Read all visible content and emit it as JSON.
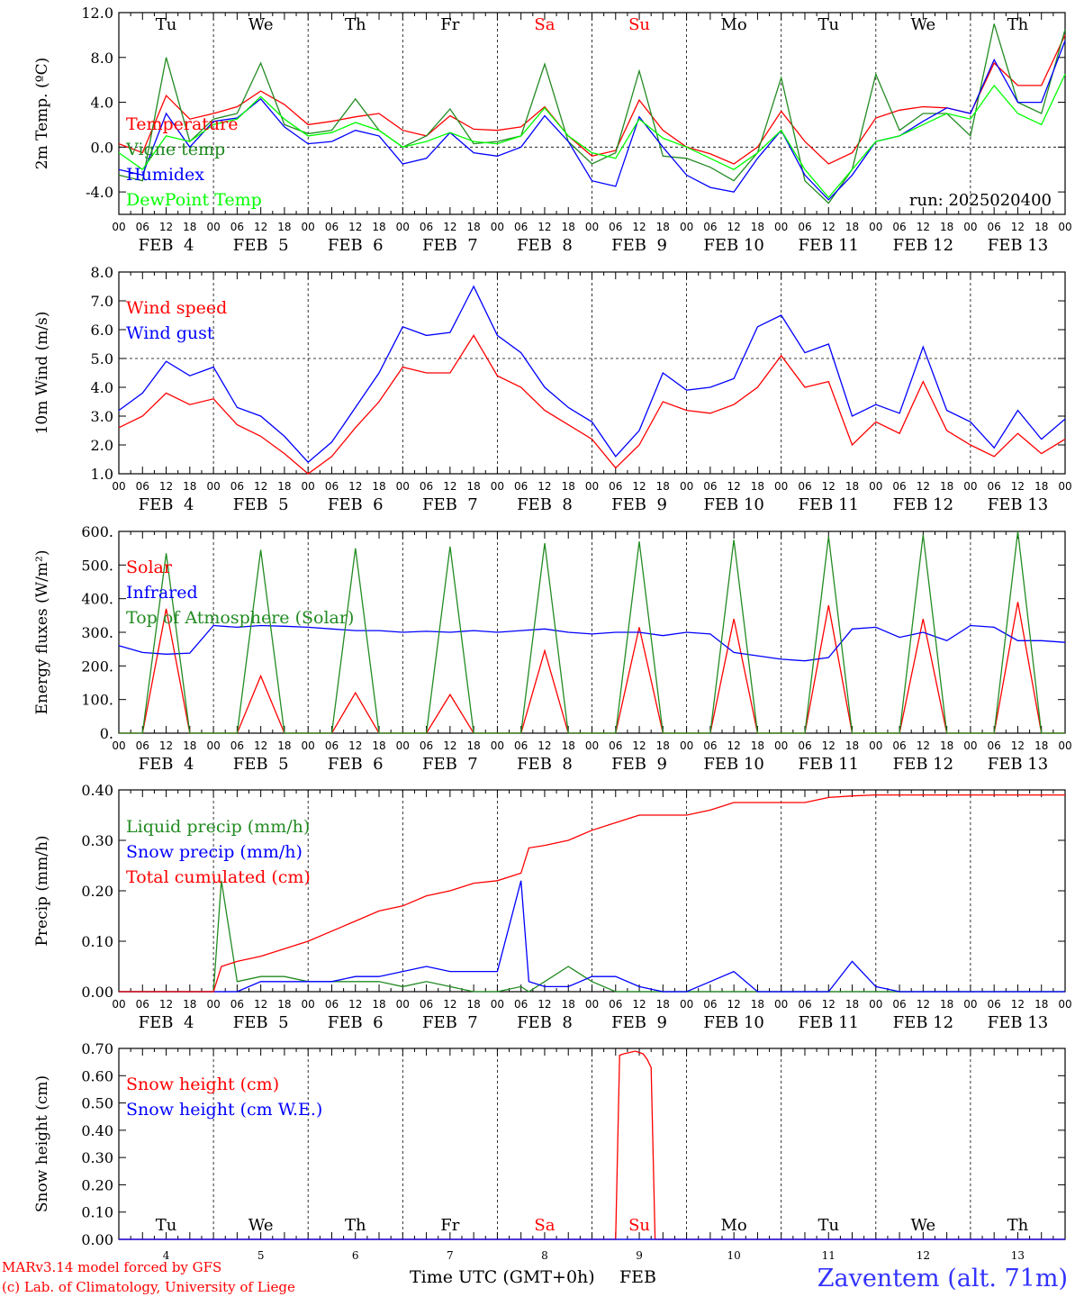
{
  "footer": {
    "model_line": "MARv3.14 model forced by GFS",
    "credit_line": "(c) Lab. of Climatology, University of Liege",
    "time_axis_label": "Time UTC (GMT+0h)",
    "month_label": "FEB",
    "station": "Zaventem (alt. 71m)"
  },
  "hour_labels": [
    "00",
    "06",
    "12",
    "18"
  ],
  "date_labels": [
    "FEB  4",
    "FEB  5",
    "FEB  6",
    "FEB  7",
    "FEB  8",
    "FEB  9",
    "FEB 10",
    "FEB 11",
    "FEB 12",
    "FEB 13"
  ],
  "day_numbers": [
    "4",
    "5",
    "6",
    "7",
    "8",
    "9",
    "10",
    "11",
    "12",
    "13"
  ],
  "weekdays": [
    {
      "label": "Tu",
      "color": "#000000"
    },
    {
      "label": "We",
      "color": "#000000"
    },
    {
      "label": "Th",
      "color": "#000000"
    },
    {
      "label": "Fr",
      "color": "#000000"
    },
    {
      "label": "Sa",
      "color": "#ff0000"
    },
    {
      "label": "Su",
      "color": "#ff0000"
    },
    {
      "label": "Mo",
      "color": "#000000"
    },
    {
      "label": "Tu",
      "color": "#000000"
    },
    {
      "label": "We",
      "color": "#000000"
    },
    {
      "label": "Th",
      "color": "#000000"
    }
  ],
  "chart_data": [
    {
      "type": "line",
      "ylabel": "2m Temp. (ºC)",
      "ylim": [
        -6,
        12
      ],
      "yticks": [
        "-4.0",
        "0.0",
        "4.0",
        "8.0",
        "12.0"
      ],
      "ytick_values": [
        -4,
        0,
        4,
        8,
        12
      ],
      "dashed_y": 0,
      "annotation": "run: 2025020400",
      "x_hours": [
        0,
        6,
        12,
        18,
        24,
        30,
        36,
        42,
        48,
        54,
        60,
        66,
        72,
        78,
        84,
        90,
        96,
        102,
        108,
        114,
        120,
        126,
        132,
        138,
        144,
        150,
        156,
        162,
        168,
        174,
        180,
        186,
        192,
        198,
        204,
        210,
        216,
        222,
        228,
        234,
        240
      ],
      "series": [
        {
          "name": "Temperature",
          "color": "#ff0000",
          "values": [
            0.3,
            -0.5,
            4.6,
            2.5,
            3.0,
            3.6,
            5.0,
            3.8,
            2.0,
            2.3,
            2.7,
            3.0,
            1.5,
            1.0,
            2.8,
            1.6,
            1.5,
            1.8,
            3.6,
            1.0,
            -0.8,
            -0.3,
            4.2,
            1.5,
            0.0,
            -0.6,
            -1.5,
            0.0,
            3.2,
            0.5,
            -1.5,
            -0.5,
            2.6,
            3.3,
            3.6,
            3.5,
            3.0,
            7.5,
            5.5,
            5.5,
            10.0
          ]
        },
        {
          "name": "Vigne temp",
          "color": "#228b22",
          "values": [
            -2.5,
            -3.0,
            8.0,
            0.5,
            2.5,
            3.0,
            7.5,
            2.0,
            1.2,
            1.5,
            4.3,
            1.5,
            0.0,
            1.0,
            3.4,
            0.3,
            0.5,
            1.0,
            7.4,
            0.5,
            -1.5,
            -0.5,
            6.8,
            -0.8,
            -1.0,
            -1.8,
            -3.0,
            -0.5,
            6.2,
            -3.0,
            -5.0,
            -2.0,
            6.5,
            1.5,
            3.0,
            3.0,
            1.0,
            11.0,
            4.0,
            3.0,
            10.5
          ]
        },
        {
          "name": "Humidex",
          "color": "#0000ff",
          "values": [
            -2.0,
            -2.5,
            3.0,
            0.0,
            2.3,
            2.6,
            4.3,
            1.8,
            0.3,
            0.5,
            1.5,
            1.0,
            -1.5,
            -1.0,
            1.3,
            -0.5,
            -0.8,
            0.0,
            2.8,
            0.5,
            -3.0,
            -3.5,
            2.7,
            0.0,
            -2.5,
            -3.6,
            -4.0,
            -1.0,
            1.5,
            -2.5,
            -4.7,
            -2.5,
            0.5,
            1.0,
            2.3,
            3.5,
            3.0,
            7.8,
            4.0,
            4.0,
            9.5
          ]
        },
        {
          "name": "DewPoint Temp",
          "color": "#00ff00",
          "values": [
            -0.5,
            -2.0,
            1.0,
            0.5,
            2.0,
            2.5,
            4.5,
            2.5,
            1.0,
            1.3,
            2.2,
            1.5,
            0.0,
            0.5,
            1.3,
            0.5,
            0.3,
            1.0,
            3.5,
            1.0,
            -0.5,
            -1.0,
            2.5,
            0.8,
            0.0,
            -1.0,
            -2.0,
            -0.5,
            1.5,
            -2.0,
            -4.5,
            -2.0,
            0.5,
            1.0,
            2.0,
            3.0,
            2.5,
            5.5,
            3.0,
            2.0,
            6.5
          ]
        }
      ]
    },
    {
      "type": "line",
      "ylabel": "10m Wind (m/s)",
      "ylim": [
        1,
        8
      ],
      "yticks": [
        "1.0",
        "2.0",
        "3.0",
        "4.0",
        "5.0",
        "6.0",
        "7.0",
        "8.0"
      ],
      "ytick_values": [
        1,
        2,
        3,
        4,
        5,
        6,
        7,
        8
      ],
      "dashed_y": 5,
      "x_hours": [
        0,
        6,
        12,
        18,
        24,
        30,
        36,
        42,
        48,
        54,
        60,
        66,
        72,
        78,
        84,
        90,
        96,
        102,
        108,
        114,
        120,
        126,
        132,
        138,
        144,
        150,
        156,
        162,
        168,
        174,
        180,
        186,
        192,
        198,
        204,
        210,
        216,
        222,
        228,
        234,
        240
      ],
      "series": [
        {
          "name": "Wind speed",
          "color": "#ff0000",
          "values": [
            2.6,
            3.0,
            3.8,
            3.4,
            3.6,
            2.7,
            2.3,
            1.7,
            1.0,
            1.6,
            2.6,
            3.5,
            4.7,
            4.5,
            4.5,
            5.8,
            4.4,
            4.0,
            3.2,
            2.7,
            2.2,
            1.2,
            2.0,
            3.5,
            3.2,
            3.1,
            3.4,
            4.0,
            5.1,
            4.0,
            4.2,
            2.0,
            2.8,
            2.4,
            4.2,
            2.5,
            2.0,
            1.6,
            2.4,
            1.7,
            2.2
          ]
        },
        {
          "name": "Wind gust",
          "color": "#0000ff",
          "values": [
            3.2,
            3.8,
            4.9,
            4.4,
            4.7,
            3.3,
            3.0,
            2.3,
            1.4,
            2.1,
            3.3,
            4.5,
            6.1,
            5.8,
            5.9,
            7.5,
            5.8,
            5.2,
            4.0,
            3.3,
            2.8,
            1.6,
            2.5,
            4.5,
            3.9,
            4.0,
            4.3,
            6.1,
            6.5,
            5.2,
            5.5,
            3.0,
            3.4,
            3.1,
            5.4,
            3.2,
            2.8,
            1.9,
            3.2,
            2.2,
            2.9
          ]
        }
      ]
    },
    {
      "type": "line",
      "ylabel": "Energy fluxes (W/m²)",
      "ylim": [
        0,
        600
      ],
      "yticks": [
        "0.",
        "100.",
        "200.",
        "300.",
        "400.",
        "500.",
        "600."
      ],
      "ytick_values": [
        0,
        100,
        200,
        300,
        400,
        500,
        600
      ],
      "x_hours": [
        0,
        6,
        12,
        18,
        24,
        30,
        36,
        42,
        48,
        54,
        60,
        66,
        72,
        78,
        84,
        90,
        96,
        102,
        108,
        114,
        120,
        126,
        132,
        138,
        144,
        150,
        156,
        162,
        168,
        174,
        180,
        186,
        192,
        198,
        204,
        210,
        216,
        222,
        228,
        234,
        240
      ],
      "series": [
        {
          "name": "Solar",
          "color": "#ff0000",
          "values": [
            0,
            0,
            370,
            0,
            0,
            0,
            170,
            0,
            0,
            0,
            120,
            0,
            0,
            0,
            115,
            0,
            0,
            0,
            245,
            0,
            0,
            0,
            315,
            0,
            0,
            0,
            340,
            0,
            0,
            0,
            380,
            0,
            0,
            0,
            340,
            0,
            0,
            0,
            390,
            0,
            0
          ]
        },
        {
          "name": "Infrared",
          "color": "#0000ff",
          "values": [
            260,
            240,
            235,
            238,
            320,
            315,
            320,
            318,
            315,
            310,
            305,
            305,
            300,
            303,
            300,
            305,
            300,
            305,
            310,
            300,
            295,
            300,
            300,
            290,
            300,
            295,
            240,
            230,
            220,
            215,
            225,
            310,
            315,
            285,
            300,
            275,
            320,
            315,
            275,
            275,
            270
          ]
        },
        {
          "name": "Top of Atmosphere (Solar)",
          "color": "#228b22",
          "values": [
            0,
            0,
            535,
            0,
            0,
            0,
            545,
            0,
            0,
            0,
            550,
            0,
            0,
            0,
            555,
            0,
            0,
            0,
            565,
            0,
            0,
            0,
            570,
            0,
            0,
            0,
            575,
            0,
            0,
            0,
            585,
            0,
            0,
            0,
            590,
            0,
            0,
            0,
            600,
            0,
            0
          ]
        }
      ]
    },
    {
      "type": "line",
      "ylabel": "Precip (mm/h)",
      "ylim": [
        0,
        0.4
      ],
      "yticks": [
        "0.00",
        "0.10",
        "0.20",
        "0.30",
        "0.40"
      ],
      "ytick_values": [
        0,
        0.1,
        0.2,
        0.3,
        0.4
      ],
      "x_hours": [
        0,
        6,
        12,
        18,
        24,
        26,
        30,
        36,
        42,
        48,
        54,
        60,
        66,
        72,
        78,
        84,
        90,
        96,
        102,
        104,
        108,
        114,
        120,
        126,
        132,
        138,
        144,
        150,
        156,
        162,
        168,
        174,
        180,
        186,
        192,
        198,
        204,
        210,
        216,
        222,
        228,
        234,
        240
      ],
      "series": [
        {
          "name": "Liquid precip (mm/h)",
          "color": "#228b22",
          "values": [
            0,
            0,
            0,
            0,
            0,
            0.22,
            0.02,
            0.03,
            0.03,
            0.02,
            0.02,
            0.02,
            0.02,
            0.01,
            0.02,
            0.01,
            0.0,
            0.0,
            0.01,
            0.0,
            0.02,
            0.05,
            0.02,
            0.0,
            0.0,
            0.0,
            0,
            0,
            0,
            0,
            0,
            0,
            0,
            0,
            0,
            0,
            0,
            0,
            0,
            0,
            0,
            0,
            0
          ]
        },
        {
          "name": "Snow precip (mm/h)",
          "color": "#0000ff",
          "values": [
            0,
            0,
            0,
            0,
            0,
            0,
            0,
            0.02,
            0.02,
            0.02,
            0.02,
            0.03,
            0.03,
            0.04,
            0.05,
            0.04,
            0.04,
            0.04,
            0.22,
            0.02,
            0.01,
            0.01,
            0.03,
            0.03,
            0.01,
            0.0,
            0.0,
            0.02,
            0.04,
            0.0,
            0.0,
            0.0,
            0.0,
            0.06,
            0.01,
            0.0,
            0,
            0,
            0,
            0,
            0,
            0,
            0
          ]
        },
        {
          "name": "Total cumulated (cm)",
          "color": "#ff0000",
          "values": [
            0,
            0,
            0,
            0,
            0,
            0.05,
            0.06,
            0.07,
            0.085,
            0.1,
            0.12,
            0.14,
            0.16,
            0.17,
            0.19,
            0.2,
            0.215,
            0.22,
            0.235,
            0.285,
            0.29,
            0.3,
            0.32,
            0.335,
            0.35,
            0.35,
            0.35,
            0.36,
            0.375,
            0.375,
            0.375,
            0.375,
            0.385,
            0.388,
            0.39,
            0.39,
            0.39,
            0.39,
            0.39,
            0.39,
            0.39,
            0.39,
            0.39
          ]
        }
      ]
    },
    {
      "type": "line",
      "ylabel": "Snow height (cm)",
      "ylim": [
        0,
        0.7
      ],
      "yticks": [
        "0.00",
        "0.10",
        "0.20",
        "0.30",
        "0.40",
        "0.50",
        "0.60",
        "0.70"
      ],
      "ytick_values": [
        0,
        0.1,
        0.2,
        0.3,
        0.4,
        0.5,
        0.6,
        0.7
      ],
      "x_hours": [
        0,
        24,
        48,
        72,
        96,
        120,
        126,
        127,
        128,
        131,
        132,
        133,
        134,
        135,
        136,
        144,
        168,
        192,
        216,
        240
      ],
      "series": [
        {
          "name": "Snow height (cm)",
          "color": "#ff0000",
          "values": [
            0,
            0,
            0,
            0,
            0,
            0,
            0,
            0.675,
            0.68,
            0.69,
            0.685,
            0.68,
            0.66,
            0.63,
            0,
            0,
            0,
            0,
            0,
            0
          ]
        },
        {
          "name": "Snow height (cm W.E.)",
          "color": "#0000ff",
          "values": [
            0,
            0,
            0,
            0,
            0,
            0,
            0,
            0,
            0,
            0,
            0,
            0,
            0,
            0,
            0,
            0,
            0,
            0,
            0,
            0
          ]
        }
      ]
    }
  ]
}
